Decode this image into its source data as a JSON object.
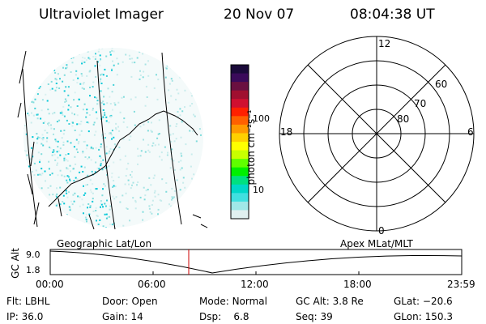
{
  "header": {
    "title": "Ultraviolet Imager",
    "date": "20 Nov 07",
    "time": "08:04:38 UT"
  },
  "colorbar": {
    "label": "photon cm⁻²s⁻¹",
    "ticks": [
      "100",
      "10"
    ],
    "colors": [
      "#1a0a3a",
      "#3a0a5a",
      "#6a1040",
      "#a01030",
      "#d01030",
      "#ff2000",
      "#ff6000",
      "#ff9900",
      "#ffd000",
      "#ffff00",
      "#c8ff00",
      "#60ff00",
      "#00f000",
      "#00e080",
      "#00d8c8",
      "#40e0e0",
      "#a0e8e8",
      "#e0f0f0"
    ]
  },
  "polar": {
    "mlt_labels": {
      "top": "12",
      "bottom": "0",
      "left": "18",
      "right": "6"
    },
    "lat_labels": [
      "60",
      "70",
      "80"
    ]
  },
  "plot": {
    "left_label": "Geographic Lat/Lon",
    "right_label": "Apex MLat/MLT",
    "ylabel": "GC Alt",
    "yticks": [
      "9.0",
      "1.8"
    ],
    "xticks": [
      "00:00",
      "06:00",
      "12:00",
      "18:00",
      "23:59"
    ],
    "marker_color": "#cc0000"
  },
  "status": {
    "row1": [
      {
        "label": "Flt:",
        "value": "LBHL"
      },
      {
        "label": "Door:",
        "value": "Open"
      },
      {
        "label": "Mode:",
        "value": "Normal"
      },
      {
        "label": "GC Alt:",
        "value": "3.8 Re"
      },
      {
        "label": "GLat:",
        "value": "−20.6"
      }
    ],
    "row2": [
      {
        "label": "IP:",
        "value": "36.0"
      },
      {
        "label": "Gain:",
        "value": "14"
      },
      {
        "label": "Dsp:",
        "value": "6.8"
      },
      {
        "label": "Seq:",
        "value": "39"
      },
      {
        "label": "GLon:",
        "value": "150.3"
      }
    ]
  }
}
